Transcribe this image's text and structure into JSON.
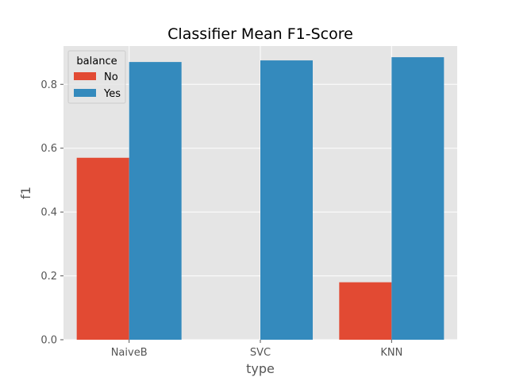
{
  "chart_data": {
    "type": "bar",
    "title": "Classifier Mean F1-Score",
    "xlabel": "type",
    "ylabel": "f1",
    "categories": [
      "NaiveB",
      "SVC",
      "KNN"
    ],
    "series": [
      {
        "name": "No",
        "values": [
          0.57,
          0,
          0.18
        ],
        "color": "#E24A33"
      },
      {
        "name": "Yes",
        "values": [
          0.87,
          0.875,
          0.885
        ],
        "color": "#348ABD"
      }
    ],
    "ylim": [
      0,
      0.92
    ],
    "yticks": [
      "0.0",
      "0.2",
      "0.4",
      "0.6",
      "0.8"
    ],
    "grid": true,
    "legend": {
      "title": "balance",
      "position": "top-left"
    },
    "background": "#E5E5E5"
  }
}
